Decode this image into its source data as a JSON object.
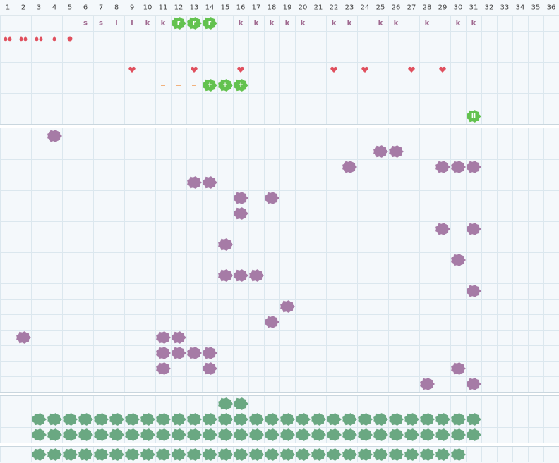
{
  "days": [
    1,
    2,
    3,
    4,
    5,
    6,
    7,
    8,
    9,
    10,
    11,
    12,
    13,
    14,
    15,
    16,
    17,
    18,
    19,
    20,
    21,
    22,
    23,
    24,
    25,
    26,
    27,
    28,
    29,
    30,
    31,
    32,
    33,
    34,
    35,
    36
  ],
  "sections": [
    {
      "rows": [
        {
          "cells": [
            {
              "day": 6,
              "text": "s"
            },
            {
              "day": 7,
              "text": "s"
            },
            {
              "day": 8,
              "text": "l"
            },
            {
              "day": 9,
              "text": "l"
            },
            {
              "day": 10,
              "text": "k"
            },
            {
              "day": 11,
              "text": "k"
            },
            {
              "day": 12,
              "text": "r",
              "blob": "#63c24f"
            },
            {
              "day": 13,
              "text": "r",
              "blob": "#63c24f"
            },
            {
              "day": 14,
              "text": "r",
              "blob": "#63c24f"
            },
            {
              "day": 16,
              "text": "k"
            },
            {
              "day": 17,
              "text": "k"
            },
            {
              "day": 18,
              "text": "k"
            },
            {
              "day": 19,
              "text": "k"
            },
            {
              "day": 20,
              "text": "k"
            },
            {
              "day": 22,
              "text": "k"
            },
            {
              "day": 23,
              "text": "k"
            },
            {
              "day": 25,
              "text": "k"
            },
            {
              "day": 26,
              "text": "k"
            },
            {
              "day": 28,
              "text": "k"
            },
            {
              "day": 30,
              "text": "k"
            },
            {
              "day": 31,
              "text": "k"
            }
          ]
        },
        {
          "cells": [
            {
              "day": 1,
              "icon": "drop-pair"
            },
            {
              "day": 2,
              "icon": "drop-pair"
            },
            {
              "day": 3,
              "icon": "drop-pair"
            },
            {
              "day": 4,
              "icon": "drop"
            },
            {
              "day": 5,
              "icon": "dot"
            }
          ]
        },
        {
          "cells": []
        },
        {
          "icon": "heart",
          "days": [
            9,
            13,
            16,
            22,
            24,
            27,
            29
          ]
        },
        {
          "cells": [
            {
              "day": 11,
              "icon": "dash"
            },
            {
              "day": 12,
              "icon": "dash"
            },
            {
              "day": 13,
              "icon": "dash"
            },
            {
              "day": 14,
              "text": "+",
              "blob": "#63c24f"
            },
            {
              "day": 15,
              "text": "+",
              "blob": "#63c24f"
            },
            {
              "day": 16,
              "text": "+",
              "blob": "#63c24f"
            }
          ]
        },
        {
          "cells": []
        },
        {
          "cells": [
            {
              "day": 31,
              "text": "ll",
              "blob": "#63c24f"
            }
          ]
        }
      ]
    },
    {
      "rows": [
        {
          "blob": "#a67ba6",
          "days": [
            4
          ]
        },
        {
          "blob": "#a67ba6",
          "days": [
            25,
            26
          ]
        },
        {
          "blob": "#a67ba6",
          "days": [
            23,
            29,
            30,
            31
          ]
        },
        {
          "blob": "#a67ba6",
          "days": [
            13,
            14
          ]
        },
        {
          "blob": "#a67ba6",
          "days": [
            16,
            18
          ]
        },
        {
          "blob": "#a67ba6",
          "days": [
            16
          ]
        },
        {
          "blob": "#a67ba6",
          "days": [
            29,
            31
          ]
        },
        {
          "blob": "#a67ba6",
          "days": [
            15
          ]
        },
        {
          "blob": "#a67ba6",
          "days": [
            30
          ]
        },
        {
          "blob": "#a67ba6",
          "days": [
            15,
            16,
            17
          ]
        },
        {
          "blob": "#a67ba6",
          "days": [
            31
          ]
        },
        {
          "blob": "#a67ba6",
          "days": [
            19
          ]
        },
        {
          "blob": "#a67ba6",
          "days": [
            18
          ]
        },
        {
          "blob": "#a67ba6",
          "days": [
            2,
            11,
            12
          ]
        },
        {
          "blob": "#a67ba6",
          "days": [
            11,
            12,
            13,
            14
          ]
        },
        {
          "blob": "#a67ba6",
          "days": [
            11,
            14,
            30
          ]
        },
        {
          "blob": "#a67ba6",
          "days": [
            28,
            31
          ]
        }
      ]
    },
    {
      "rows": [
        {
          "blob": "#6aa882",
          "days": [
            15,
            16
          ]
        },
        {
          "blob": "#6aa882",
          "days": [
            3,
            4,
            5,
            6,
            7,
            8,
            9,
            10,
            11,
            12,
            13,
            14,
            15,
            16,
            17,
            18,
            19,
            20,
            21,
            22,
            23,
            24,
            25,
            26,
            27,
            28,
            29,
            30,
            31
          ]
        },
        {
          "blob": "#6aa882",
          "days": [
            3,
            4,
            5,
            6,
            7,
            8,
            9,
            10,
            11,
            12,
            13,
            14,
            15,
            16,
            17,
            18,
            19,
            20,
            21,
            22,
            23,
            24,
            25,
            26,
            27,
            28,
            29,
            30,
            31
          ]
        }
      ]
    },
    {
      "rows": [
        {
          "blob": "#6aa882",
          "days": [
            3,
            4,
            5,
            6,
            7,
            8,
            9,
            10,
            11,
            12,
            13,
            14,
            15,
            16,
            17,
            18,
            19,
            20,
            21,
            22,
            23,
            24,
            25,
            26,
            27,
            28,
            29,
            30
          ]
        }
      ]
    }
  ]
}
